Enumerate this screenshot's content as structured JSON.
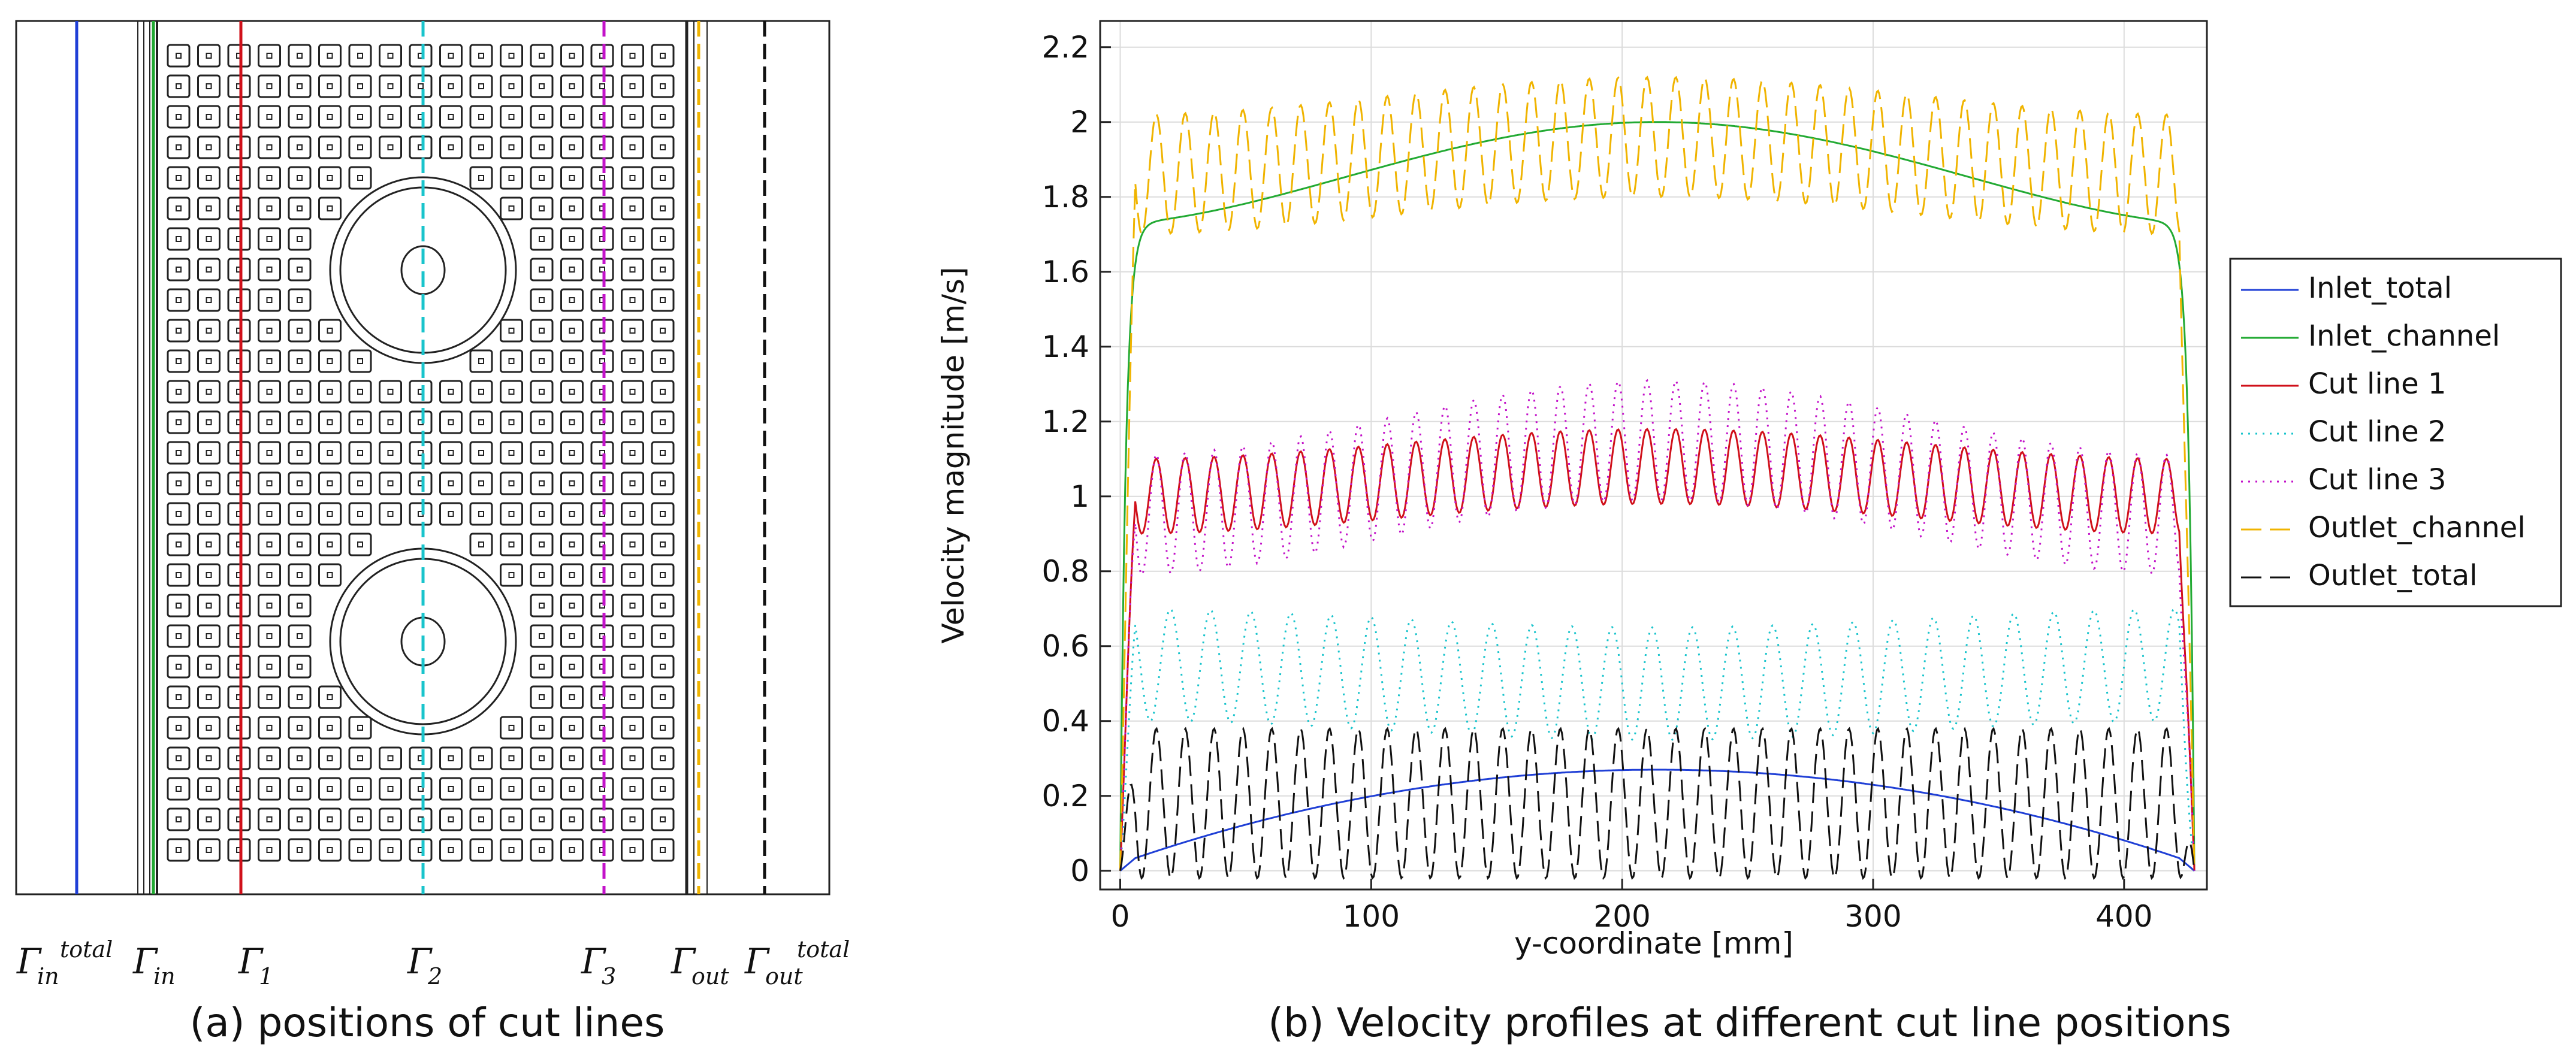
{
  "panel_a": {
    "caption": "(a) positions of cut lines",
    "gamma_labels": [
      {
        "base": "Γ",
        "sub": "in",
        "sup": "total"
      },
      {
        "base": "Γ",
        "sub": "in",
        "sup": ""
      },
      {
        "base": "Γ",
        "sub": "1",
        "sup": ""
      },
      {
        "base": "Γ",
        "sub": "2",
        "sup": ""
      },
      {
        "base": "Γ",
        "sub": "3",
        "sup": ""
      },
      {
        "base": "Γ",
        "sub": "out",
        "sup": ""
      },
      {
        "base": "Γ",
        "sub": "out",
        "sup": "total"
      }
    ],
    "line_colors": {
      "inlet_total": "#1f3fd6",
      "inlet_channel": "#22aa33",
      "cut1": "#d0101a",
      "cut2": "#19c4cc",
      "cut3": "#c312c9",
      "outlet_channel": "#f0b400",
      "outlet_total": "#111111"
    }
  },
  "chart_data": {
    "type": "line",
    "caption": "(b) Velocity profiles at different cut line positions",
    "xlabel": "y-coordinate [mm]",
    "ylabel": "Velocity magnitude [m/s]",
    "xlim": [
      -8,
      433
    ],
    "ylim": [
      -0.05,
      2.27
    ],
    "xticks": [
      0,
      100,
      200,
      300,
      400
    ],
    "yticks": [
      0,
      0.2,
      0.4,
      0.6,
      0.8,
      1,
      1.2,
      1.4,
      1.6,
      1.8,
      2,
      2.2
    ],
    "ytick_labels": [
      "0",
      "0.2",
      "0.4",
      "0.6",
      "0.8",
      "1",
      "1.2",
      "1.4",
      "1.6",
      "1.8",
      "2",
      "2.2"
    ],
    "grid": true,
    "legend_position": "right",
    "x_max": 428,
    "series": [
      {
        "name": "Inlet_total",
        "color": "#1f3fd6",
        "dash": "solid",
        "model": "parabola",
        "peak": 0.25
      },
      {
        "name": "Inlet_channel",
        "color": "#22aa33",
        "dash": "solid",
        "model": "plateau",
        "edge": 1.73,
        "center": 2.0
      },
      {
        "name": "Cut line 1",
        "color": "#d0101a",
        "dash": "solid",
        "model": "oscillating",
        "base": 1.0,
        "center_base": 1.08,
        "amp": 0.1,
        "period": 11.5
      },
      {
        "name": "Cut line 2",
        "color": "#19c4cc",
        "dash": "dotted",
        "model": "oscillating",
        "base": 0.55,
        "center_base": 0.5,
        "amp": 0.15,
        "period": 16
      },
      {
        "name": "Cut line 3",
        "color": "#c312c9",
        "dash": "dotted",
        "model": "oscillating",
        "base": 0.95,
        "center_base": 1.15,
        "amp": 0.16,
        "period": 11.5
      },
      {
        "name": "Outlet_channel",
        "color": "#f0b400",
        "dash": "dashed",
        "model": "oscillating",
        "base": 1.86,
        "center_base": 1.96,
        "amp": 0.16,
        "period": 11.5
      },
      {
        "name": "Outlet_total",
        "color": "#111111",
        "dash": "dashed",
        "model": "oscillating",
        "base": 0.18,
        "center_base": 0.18,
        "amp": 0.2,
        "period": 11.5
      }
    ]
  }
}
